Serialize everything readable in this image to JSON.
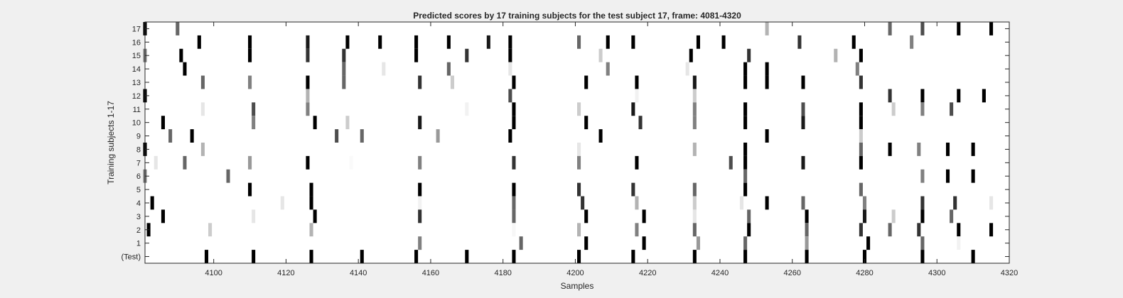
{
  "chart_data": {
    "type": "heatmap",
    "title": "Predicted scores by 17 training subjects for the test subject 17, frame: 4081-4320",
    "xlabel": "Samples",
    "ylabel": "Training subjects 1-17",
    "xlim": [
      4081,
      4320
    ],
    "x_ticks": [
      4100,
      4120,
      4140,
      4160,
      4180,
      4200,
      4220,
      4240,
      4260,
      4280,
      4300,
      4320
    ],
    "y_tick_labels": [
      "17",
      "16",
      "15",
      "14",
      "13",
      "12",
      "11",
      "10",
      "9",
      "8",
      "7",
      "6",
      "5",
      "4",
      "3",
      "2",
      "1",
      "(Test)"
    ],
    "colormap": "gray (white = 0, black = 1)",
    "grid": false,
    "rows": [
      {
        "label": "17",
        "spikes": [
          [
            4081,
            1
          ],
          [
            4090,
            0.6
          ],
          [
            4253,
            0.3
          ],
          [
            4287,
            0.6
          ],
          [
            4296,
            0.7
          ],
          [
            4306,
            1
          ],
          [
            4315,
            1
          ]
        ]
      },
      {
        "label": "16",
        "spikes": [
          [
            4096,
            1
          ],
          [
            4110,
            1
          ],
          [
            4126,
            0.9
          ],
          [
            4137,
            1
          ],
          [
            4146,
            1
          ],
          [
            4156,
            1
          ],
          [
            4165,
            1
          ],
          [
            4176,
            0.9
          ],
          [
            4182,
            1
          ],
          [
            4201,
            0.6
          ],
          [
            4209,
            1
          ],
          [
            4216,
            1
          ],
          [
            4234,
            1
          ],
          [
            4241,
            1
          ],
          [
            4262,
            0.8
          ],
          [
            4277,
            1
          ],
          [
            4293,
            0.5
          ]
        ]
      },
      {
        "label": "15",
        "spikes": [
          [
            4081,
            0.5
          ],
          [
            4091,
            1
          ],
          [
            4110,
            1
          ],
          [
            4126,
            0.8
          ],
          [
            4136,
            0.8
          ],
          [
            4156,
            1
          ],
          [
            4170,
            0.8
          ],
          [
            4182,
            1
          ],
          [
            4207,
            0.2
          ],
          [
            4232,
            1
          ],
          [
            4248,
            0.8
          ],
          [
            4272,
            0.3
          ],
          [
            4279,
            1
          ]
        ]
      },
      {
        "label": "14",
        "spikes": [
          [
            4092,
            1
          ],
          [
            4136,
            0.6
          ],
          [
            4147,
            0.1
          ],
          [
            4165,
            0.6
          ],
          [
            4182,
            0.1
          ],
          [
            4209,
            0.5
          ],
          [
            4231,
            0.1
          ],
          [
            4247,
            1
          ],
          [
            4253,
            1
          ],
          [
            4278,
            0.5
          ]
        ]
      },
      {
        "label": "13",
        "spikes": [
          [
            4097,
            0.6
          ],
          [
            4110,
            0.5
          ],
          [
            4126,
            1
          ],
          [
            4136,
            0.6
          ],
          [
            4157,
            0.8
          ],
          [
            4166,
            0.2
          ],
          [
            4183,
            1
          ],
          [
            4203,
            1
          ],
          [
            4217,
            1
          ],
          [
            4233,
            0.9
          ],
          [
            4247,
            1
          ],
          [
            4253,
            1
          ],
          [
            4263,
            1
          ],
          [
            4279,
            0.8
          ]
        ]
      },
      {
        "label": "12",
        "spikes": [
          [
            4081,
            1
          ],
          [
            4126,
            0.3
          ],
          [
            4182,
            0.7
          ],
          [
            4217,
            0.05
          ],
          [
            4233,
            0.2
          ],
          [
            4287,
            0.8
          ],
          [
            4296,
            1
          ],
          [
            4306,
            1
          ],
          [
            4313,
            1
          ]
        ]
      },
      {
        "label": "11",
        "spikes": [
          [
            4097,
            0.1
          ],
          [
            4111,
            0.7
          ],
          [
            4126,
            0.5
          ],
          [
            4170,
            0.05
          ],
          [
            4183,
            1
          ],
          [
            4201,
            0.2
          ],
          [
            4216,
            0.9
          ],
          [
            4233,
            0.5
          ],
          [
            4247,
            1
          ],
          [
            4263,
            0.7
          ],
          [
            4279,
            1
          ],
          [
            4288,
            0.2
          ],
          [
            4296,
            0.5
          ],
          [
            4304,
            0.7
          ]
        ]
      },
      {
        "label": "10",
        "spikes": [
          [
            4086,
            1
          ],
          [
            4111,
            0.5
          ],
          [
            4128,
            1
          ],
          [
            4137,
            0.2
          ],
          [
            4157,
            0.9
          ],
          [
            4183,
            1
          ],
          [
            4203,
            1
          ],
          [
            4218,
            0.8
          ],
          [
            4233,
            0.5
          ],
          [
            4247,
            1
          ],
          [
            4263,
            0.9
          ],
          [
            4279,
            1
          ]
        ]
      },
      {
        "label": "9",
        "spikes": [
          [
            4088,
            0.6
          ],
          [
            4094,
            1
          ],
          [
            4134,
            0.7
          ],
          [
            4141,
            0.6
          ],
          [
            4162,
            0.4
          ],
          [
            4182,
            1
          ],
          [
            4207,
            1
          ],
          [
            4253,
            1
          ],
          [
            4279,
            0.2
          ]
        ]
      },
      {
        "label": "8",
        "spikes": [
          [
            4081,
            1
          ],
          [
            4097,
            0.3
          ],
          [
            4201,
            0.1
          ],
          [
            4233,
            0.3
          ],
          [
            4247,
            1
          ],
          [
            4279,
            0.6
          ],
          [
            4287,
            1
          ],
          [
            4295,
            0.5
          ],
          [
            4303,
            1
          ],
          [
            4310,
            1
          ]
        ]
      },
      {
        "label": "7",
        "spikes": [
          [
            4084,
            0.1
          ],
          [
            4092,
            0.6
          ],
          [
            4110,
            0.4
          ],
          [
            4126,
            1
          ],
          [
            4138,
            0.02
          ],
          [
            4157,
            0.5
          ],
          [
            4183,
            0.8
          ],
          [
            4201,
            0.5
          ],
          [
            4217,
            1
          ],
          [
            4243,
            0.7
          ],
          [
            4247,
            1
          ],
          [
            4263,
            0.9
          ],
          [
            4279,
            1
          ]
        ]
      },
      {
        "label": "6",
        "spikes": [
          [
            4081,
            0.5
          ],
          [
            4104,
            0.6
          ],
          [
            4247,
            0.6
          ],
          [
            4296,
            0.5
          ],
          [
            4303,
            1
          ],
          [
            4310,
            1
          ]
        ]
      },
      {
        "label": "5",
        "spikes": [
          [
            4110,
            1
          ],
          [
            4127,
            1
          ],
          [
            4157,
            1
          ],
          [
            4183,
            1
          ],
          [
            4201,
            0.8
          ],
          [
            4216,
            0.8
          ],
          [
            4233,
            0.6
          ],
          [
            4247,
            1
          ],
          [
            4279,
            0.6
          ]
        ]
      },
      {
        "label": "4",
        "spikes": [
          [
            4083,
            1
          ],
          [
            4119,
            0.1
          ],
          [
            4127,
            1
          ],
          [
            4157,
            0.05
          ],
          [
            4183,
            0.6
          ],
          [
            4202,
            0.8
          ],
          [
            4217,
            0.3
          ],
          [
            4233,
            0.2
          ],
          [
            4246,
            0.1
          ],
          [
            4253,
            1
          ],
          [
            4263,
            0.6
          ],
          [
            4280,
            0.5
          ],
          [
            4296,
            0.8
          ],
          [
            4305,
            0.8
          ],
          [
            4315,
            0.1
          ]
        ]
      },
      {
        "label": "3",
        "spikes": [
          [
            4086,
            1
          ],
          [
            4111,
            0.1
          ],
          [
            4128,
            1
          ],
          [
            4157,
            0.8
          ],
          [
            4183,
            0.6
          ],
          [
            4203,
            1
          ],
          [
            4219,
            1
          ],
          [
            4233,
            0.1
          ],
          [
            4248,
            0.6
          ],
          [
            4264,
            1
          ],
          [
            4280,
            0.9
          ],
          [
            4288,
            0.2
          ],
          [
            4296,
            1
          ],
          [
            4304,
            0.6
          ]
        ]
      },
      {
        "label": "2",
        "spikes": [
          [
            4082,
            1
          ],
          [
            4099,
            0.2
          ],
          [
            4127,
            0.3
          ],
          [
            4183,
            0.03
          ],
          [
            4201,
            0.3
          ],
          [
            4217,
            0.5
          ],
          [
            4233,
            0.6
          ],
          [
            4248,
            1
          ],
          [
            4264,
            0.6
          ],
          [
            4279,
            0.8
          ],
          [
            4287,
            0.6
          ],
          [
            4295,
            0.8
          ],
          [
            4306,
            1
          ],
          [
            4315,
            1
          ]
        ]
      },
      {
        "label": "1",
        "spikes": [
          [
            4157,
            0.5
          ],
          [
            4185,
            0.6
          ],
          [
            4203,
            1
          ],
          [
            4219,
            1
          ],
          [
            4234,
            0.4
          ],
          [
            4247,
            0.6
          ],
          [
            4264,
            0.4
          ],
          [
            4281,
            1
          ],
          [
            4296,
            0.6
          ],
          [
            4306,
            0.05
          ]
        ]
      },
      {
        "label": "(Test)",
        "spikes": [
          [
            4098,
            1
          ],
          [
            4111,
            1
          ],
          [
            4127,
            1
          ],
          [
            4141,
            1
          ],
          [
            4156,
            1
          ],
          [
            4170,
            1
          ],
          [
            4183,
            1
          ],
          [
            4201,
            1
          ],
          [
            4216,
            1
          ],
          [
            4233,
            1
          ],
          [
            4247,
            1
          ],
          [
            4264,
            1
          ],
          [
            4280,
            1
          ],
          [
            4296,
            1
          ],
          [
            4310,
            1
          ]
        ]
      }
    ]
  }
}
